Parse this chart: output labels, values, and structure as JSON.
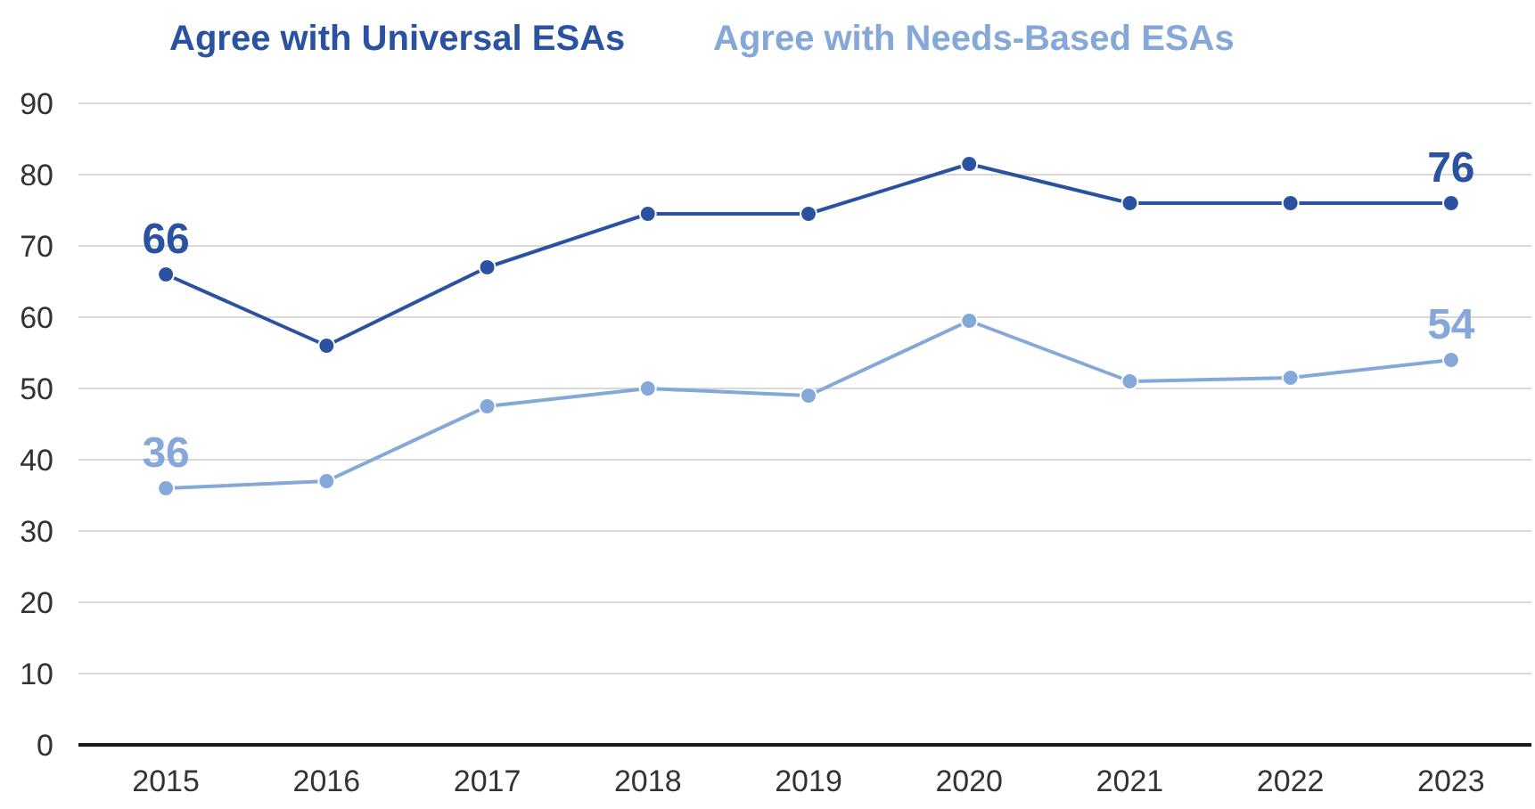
{
  "chart_data": {
    "type": "line",
    "categories": [
      "2015",
      "2016",
      "2017",
      "2018",
      "2019",
      "2020",
      "2021",
      "2022",
      "2023"
    ],
    "series": [
      {
        "name": "Agree with Universal ESAs",
        "color": "#2a52a0",
        "values": [
          66,
          56,
          67,
          74.5,
          74.5,
          81.5,
          76,
          76,
          76
        ]
      },
      {
        "name": "Agree with Needs-Based ESAs",
        "color": "#85a8d8",
        "values": [
          36,
          37,
          47.5,
          50,
          49,
          59.5,
          51,
          51.5,
          54
        ]
      }
    ],
    "annotations": [
      {
        "text": "66",
        "x": "2015",
        "y": 66
      },
      {
        "text": "76",
        "x": "2023",
        "y": 76
      },
      {
        "text": "36",
        "x": "2015",
        "y": 36
      },
      {
        "text": "54",
        "x": "2023",
        "y": 54
      }
    ],
    "ylim": [
      0,
      90
    ],
    "yticks": [
      0,
      10,
      20,
      30,
      40,
      50,
      60,
      70,
      80,
      90
    ],
    "grid": "y",
    "legend": "top",
    "marker": "circle",
    "line_style": "solid"
  }
}
